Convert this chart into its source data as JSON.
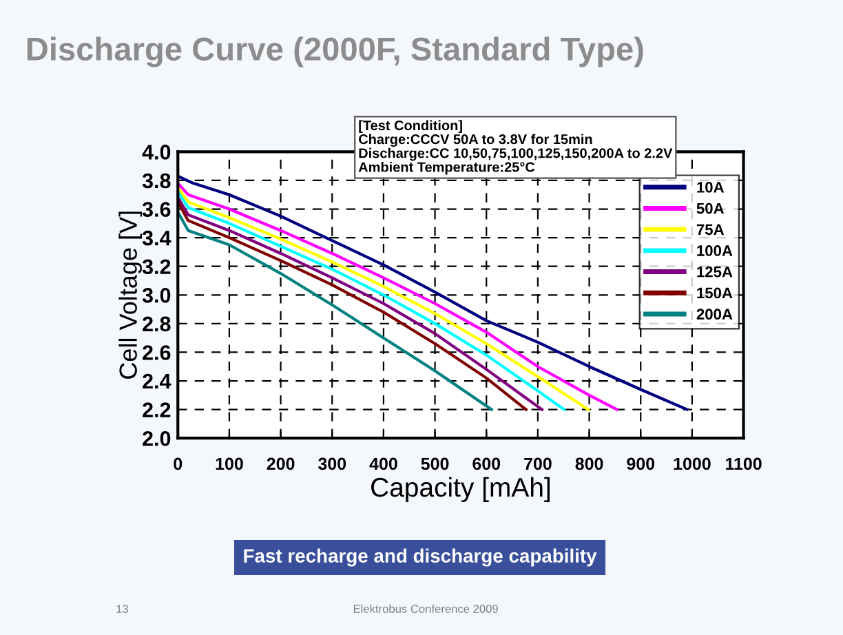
{
  "chart_data": {
    "type": "line",
    "title": "Discharge Curve (2000F, Standard Type)",
    "xlabel": "Capacity [mAh]",
    "ylabel": "Cell Voltage [V]",
    "xlim": [
      0,
      1100
    ],
    "xticks": [
      0,
      100,
      200,
      300,
      400,
      500,
      600,
      700,
      800,
      900,
      1000,
      1100
    ],
    "ylim": [
      2.0,
      4.0
    ],
    "yticks": [
      {
        "value": 2.0,
        "label": "2.0"
      },
      2.2,
      2.4,
      2.6,
      2.8,
      {
        "value": 3.0,
        "label": "3.0"
      },
      3.2,
      3.4,
      3.6,
      3.8,
      {
        "value": 4.0,
        "label": "4.0"
      }
    ],
    "grid": true,
    "legend": "right",
    "marker": "none",
    "line_style": "solid",
    "series": [
      {
        "name": "10A",
        "color": "#000080",
        "x": [
          0,
          30,
          100,
          200,
          300,
          400,
          500,
          600,
          700,
          800,
          900,
          990
        ],
        "values": [
          3.83,
          3.78,
          3.7,
          3.55,
          3.38,
          3.21,
          3.02,
          2.82,
          2.67,
          2.5,
          2.34,
          2.2
        ]
      },
      {
        "name": "50A",
        "color": "#ff00ff",
        "x": [
          0,
          20,
          100,
          200,
          300,
          400,
          500,
          600,
          700,
          800,
          854
        ],
        "values": [
          3.78,
          3.7,
          3.6,
          3.45,
          3.29,
          3.12,
          2.94,
          2.74,
          2.5,
          2.3,
          2.2
        ]
      },
      {
        "name": "75A",
        "color": "#ffff00",
        "x": [
          0,
          20,
          100,
          200,
          300,
          400,
          500,
          600,
          700,
          798
        ],
        "values": [
          3.75,
          3.65,
          3.54,
          3.39,
          3.23,
          3.06,
          2.87,
          2.66,
          2.43,
          2.2
        ]
      },
      {
        "name": "100A",
        "color": "#00ffff",
        "x": [
          0,
          20,
          100,
          200,
          300,
          400,
          500,
          600,
          700,
          751
        ],
        "values": [
          3.72,
          3.61,
          3.5,
          3.34,
          3.18,
          3.0,
          2.8,
          2.58,
          2.33,
          2.2
        ]
      },
      {
        "name": "125A",
        "color": "#800080",
        "x": [
          0,
          20,
          100,
          200,
          300,
          400,
          500,
          600,
          708
        ],
        "values": [
          3.68,
          3.56,
          3.45,
          3.29,
          3.12,
          2.94,
          2.73,
          2.48,
          2.2
        ]
      },
      {
        "name": "150A",
        "color": "#800000",
        "x": [
          0,
          20,
          100,
          200,
          300,
          400,
          500,
          600,
          677
        ],
        "values": [
          3.65,
          3.52,
          3.4,
          3.24,
          3.07,
          2.88,
          2.66,
          2.42,
          2.2
        ]
      },
      {
        "name": "200A",
        "color": "#008080",
        "x": [
          0,
          20,
          100,
          200,
          300,
          400,
          500,
          610
        ],
        "values": [
          3.58,
          3.45,
          3.35,
          3.15,
          2.93,
          2.7,
          2.47,
          2.2
        ]
      }
    ],
    "annotations": [
      "[Test Condition]\nCharge:CCCV 50A to 3.8V for 15min\nDischarge:CC 10,50,75,100,125,150,200A to 2.2V\nAmbient Temperature:25°C",
      "Fast recharge and discharge capability",
      "13",
      "Elektrobus Conference 2009"
    ]
  }
}
